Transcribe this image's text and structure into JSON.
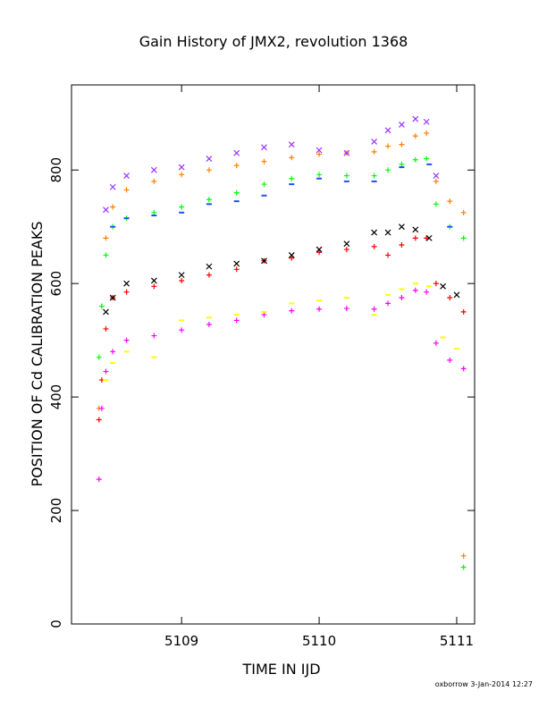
{
  "chart_data": {
    "type": "scatter",
    "title": "Gain History of JMX2, revolution 1368",
    "xlabel": "TIME IN IJD",
    "ylabel": "POSITION OF Cd CALIBRATION PEAKS",
    "xlim": [
      5108.2,
      5111.13
    ],
    "ylim": [
      0,
      950
    ],
    "xticks": [
      "5109",
      "5110",
      "5111"
    ],
    "xtick_values": [
      5109,
      5110,
      5111
    ],
    "yticks": [
      "0",
      "200",
      "400",
      "600",
      "800"
    ],
    "ytick_values": [
      0,
      200,
      400,
      600,
      800
    ],
    "grid": false,
    "footer": "oxborrow  3-Jan-2014 12:27",
    "series": [
      {
        "color": "#ff8000",
        "marker": "plus",
        "x": [
          5108.4,
          5108.42,
          5108.45,
          5108.5,
          5108.6,
          5108.8,
          5109.0,
          5109.2,
          5109.4,
          5109.6,
          5109.8,
          5110.0,
          5110.2,
          5110.4,
          5110.5,
          5110.6,
          5110.7,
          5110.78,
          5110.85,
          5110.95,
          5111.05
        ],
        "y": [
          380,
          560,
          680,
          735,
          765,
          780,
          792,
          800,
          808,
          815,
          822,
          828,
          830,
          832,
          842,
          845,
          860,
          865,
          780,
          745,
          725
        ]
      },
      {
        "color": "#00ff00",
        "marker": "plus",
        "x": [
          5108.4,
          5108.42,
          5108.45,
          5108.5,
          5108.6,
          5108.8,
          5109.0,
          5109.2,
          5109.4,
          5109.6,
          5109.8,
          5110.0,
          5110.2,
          5110.4,
          5110.5,
          5110.6,
          5110.7,
          5110.78,
          5110.85,
          5110.95,
          5111.05
        ],
        "y": [
          470,
          560,
          650,
          700,
          715,
          725,
          735,
          748,
          760,
          775,
          785,
          792,
          790,
          790,
          800,
          810,
          818,
          820,
          740,
          700,
          680
        ]
      },
      {
        "color": "#ff0000",
        "marker": "plus",
        "x": [
          5108.4,
          5108.42,
          5108.45,
          5108.5,
          5108.6,
          5108.8,
          5109.0,
          5109.2,
          5109.4,
          5109.6,
          5109.8,
          5110.0,
          5110.2,
          5110.4,
          5110.5,
          5110.6,
          5110.7,
          5110.78,
          5110.85,
          5110.95,
          5111.05
        ],
        "y": [
          360,
          430,
          520,
          575,
          585,
          595,
          605,
          615,
          625,
          640,
          645,
          655,
          660,
          665,
          650,
          668,
          680,
          680,
          600,
          575,
          550
        ]
      },
      {
        "color": "#ff00ff",
        "marker": "plus",
        "x": [
          5108.4,
          5108.42,
          5108.45,
          5108.5,
          5108.6,
          5108.8,
          5109.0,
          5109.2,
          5109.4,
          5109.6,
          5109.8,
          5110.0,
          5110.2,
          5110.4,
          5110.5,
          5110.6,
          5110.7,
          5110.78,
          5110.85,
          5110.95,
          5111.05
        ],
        "y": [
          255,
          380,
          445,
          480,
          500,
          508,
          518,
          528,
          535,
          545,
          552,
          555,
          556,
          555,
          565,
          575,
          588,
          585,
          495,
          465,
          450
        ]
      },
      {
        "color": "#9933ff",
        "marker": "cross",
        "x": [
          5108.45,
          5108.5,
          5108.6,
          5108.8,
          5109.0,
          5109.2,
          5109.4,
          5109.6,
          5109.8,
          5110.0,
          5110.2,
          5110.4,
          5110.5,
          5110.6,
          5110.7,
          5110.78,
          5110.85
        ],
        "y": [
          730,
          770,
          790,
          800,
          805,
          820,
          830,
          840,
          845,
          835,
          830,
          850,
          870,
          880,
          890,
          885,
          790
        ]
      },
      {
        "color": "#1e50ff",
        "marker": "dash",
        "x": [
          5108.5,
          5108.6,
          5108.8,
          5109.0,
          5109.2,
          5109.4,
          5109.6,
          5109.8,
          5110.0,
          5110.2,
          5110.4,
          5110.6,
          5110.8,
          5110.95
        ],
        "y": [
          700,
          715,
          720,
          725,
          740,
          745,
          755,
          775,
          785,
          780,
          780,
          805,
          810,
          700
        ]
      },
      {
        "color": "#000000",
        "marker": "cross",
        "x": [
          5108.45,
          5108.5,
          5108.6,
          5108.8,
          5109.0,
          5109.2,
          5109.4,
          5109.6,
          5109.8,
          5110.0,
          5110.2,
          5110.4,
          5110.5,
          5110.6,
          5110.7,
          5110.8,
          5110.9,
          5111.0
        ],
        "y": [
          550,
          575,
          600,
          605,
          615,
          630,
          635,
          640,
          650,
          660,
          670,
          690,
          690,
          700,
          695,
          680,
          595,
          580
        ]
      },
      {
        "color": "#ffff00",
        "marker": "dash",
        "x": [
          5108.45,
          5108.5,
          5108.6,
          5108.8,
          5109.0,
          5109.2,
          5109.4,
          5109.6,
          5109.8,
          5110.0,
          5110.2,
          5110.4,
          5110.5,
          5110.6,
          5110.7,
          5110.8,
          5110.9,
          5111.0
        ],
        "y": [
          430,
          460,
          480,
          470,
          535,
          540,
          545,
          550,
          565,
          570,
          575,
          545,
          580,
          590,
          600,
          595,
          505,
          485
        ]
      },
      {
        "color": "#ff8000",
        "marker": "plus",
        "x": [
          5111.05
        ],
        "y": [
          120
        ]
      },
      {
        "color": "#00ff00",
        "marker": "plus",
        "x": [
          5111.05
        ],
        "y": [
          100
        ]
      }
    ]
  }
}
